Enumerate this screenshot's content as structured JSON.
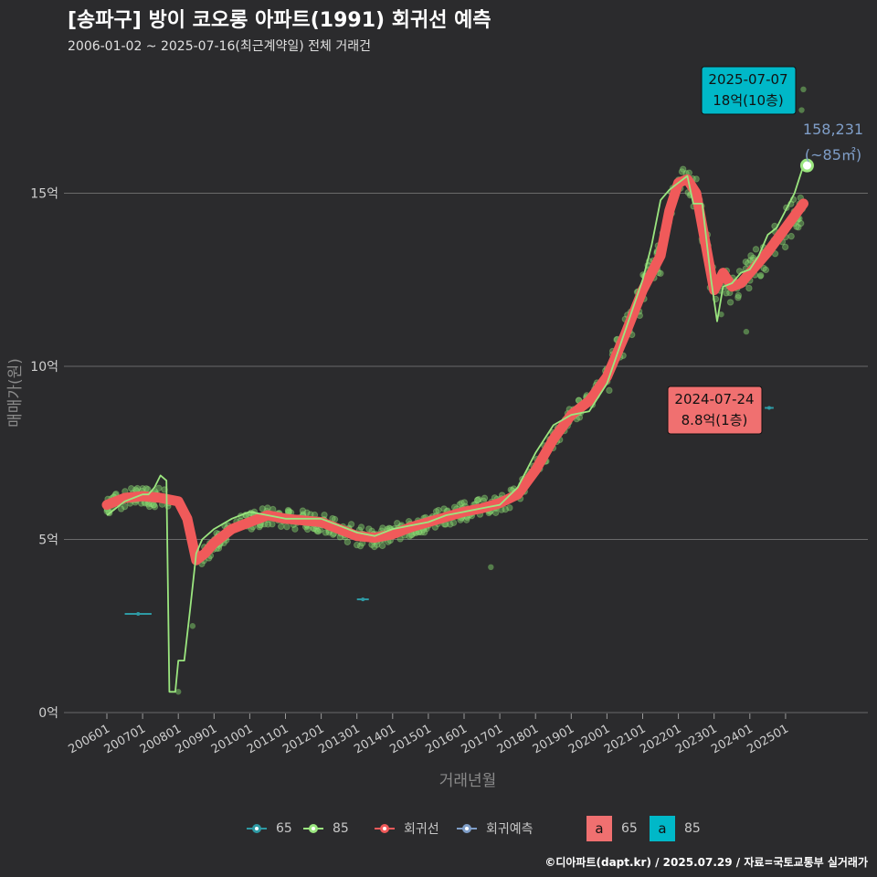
{
  "title": "[송파구] 방이 코오롱 아파트(1991) 회귀선 예측",
  "subtitle": "2006-01-02 ~ 2025-07-16(최근계약일) 전체 거래건",
  "caption": "©디아파트(dapt.kr) / 2025.07.29 / 자료=국토교통부 실거래가",
  "legend": {
    "items": [
      {
        "label": "65",
        "color": "#2e9aa4"
      },
      {
        "label": "85",
        "color": "#9be67f"
      },
      {
        "label": "회귀선",
        "color": "#f05a5a"
      },
      {
        "label": "회귀예측",
        "color": "#7f9ec8"
      }
    ],
    "text_items": [
      {
        "glyph": "a",
        "label": "65",
        "color": "#f07070"
      },
      {
        "glyph": "a",
        "label": "85",
        "color": "#00b8c8"
      }
    ]
  },
  "chart_data": {
    "type": "line",
    "xlabel": "거래년월",
    "ylabel": "매매가(원)",
    "x_ticks": [
      "200601",
      "200701",
      "200801",
      "200901",
      "201001",
      "201101",
      "201201",
      "201301",
      "201401",
      "201501",
      "201601",
      "201701",
      "201801",
      "201901",
      "202001",
      "202101",
      "202201",
      "202301",
      "202401",
      "202501"
    ],
    "y_ticks": [
      {
        "value": 0,
        "label": "0억"
      },
      {
        "value": 5,
        "label": "5억"
      },
      {
        "value": 10,
        "label": "10억"
      },
      {
        "value": 15,
        "label": "15억"
      }
    ],
    "ylim": [
      0,
      18.5
    ],
    "y_unit": "억",
    "grid": true,
    "legend_position": "bottom",
    "series": [
      {
        "name": "85",
        "kind": "monthly-median",
        "color": "#9be67f",
        "points": [
          [
            "2006-01",
            5.7
          ],
          [
            "2006-04",
            5.9
          ],
          [
            "2006-07",
            6.1
          ],
          [
            "2006-10",
            6.2
          ],
          [
            "2007-01",
            6.3
          ],
          [
            "2007-03",
            6.3
          ],
          [
            "2007-05",
            6.5
          ],
          [
            "2007-07",
            6.85
          ],
          [
            "2007-09",
            6.7
          ],
          [
            "2007-10",
            0.6
          ],
          [
            "2007-12",
            0.6
          ],
          [
            "2008-01",
            1.5
          ],
          [
            "2008-03",
            1.5
          ],
          [
            "2008-05",
            3.0
          ],
          [
            "2008-07",
            4.6
          ],
          [
            "2008-09",
            5.0
          ],
          [
            "2009-01",
            5.3
          ],
          [
            "2009-07",
            5.6
          ],
          [
            "2010-01",
            5.8
          ],
          [
            "2010-07",
            5.7
          ],
          [
            "2011-01",
            5.6
          ],
          [
            "2011-07",
            5.6
          ],
          [
            "2012-01",
            5.6
          ],
          [
            "2012-07",
            5.4
          ],
          [
            "2013-01",
            5.2
          ],
          [
            "2013-07",
            5.1
          ],
          [
            "2014-01",
            5.3
          ],
          [
            "2014-07",
            5.4
          ],
          [
            "2015-01",
            5.5
          ],
          [
            "2015-07",
            5.7
          ],
          [
            "2016-01",
            5.8
          ],
          [
            "2016-07",
            5.9
          ],
          [
            "2017-01",
            6.0
          ],
          [
            "2017-07",
            6.5
          ],
          [
            "2018-01",
            7.5
          ],
          [
            "2018-07",
            8.3
          ],
          [
            "2019-01",
            8.6
          ],
          [
            "2019-07",
            8.7
          ],
          [
            "2020-01",
            9.5
          ],
          [
            "2020-07",
            11.0
          ],
          [
            "2021-01",
            12.5
          ],
          [
            "2021-04",
            13.5
          ],
          [
            "2021-07",
            14.8
          ],
          [
            "2021-10",
            15.1
          ],
          [
            "2022-01",
            15.3
          ],
          [
            "2022-04",
            15.5
          ],
          [
            "2022-06",
            14.7
          ],
          [
            "2022-09",
            14.7
          ],
          [
            "2022-12",
            12.5
          ],
          [
            "2023-02",
            11.3
          ],
          [
            "2023-04",
            12.3
          ],
          [
            "2023-07",
            12.4
          ],
          [
            "2023-10",
            12.7
          ],
          [
            "2024-01",
            12.8
          ],
          [
            "2024-04",
            13.2
          ],
          [
            "2024-07",
            13.8
          ],
          [
            "2024-10",
            14.0
          ],
          [
            "2025-01",
            14.5
          ],
          [
            "2025-04",
            15.0
          ],
          [
            "2025-07",
            15.8
          ]
        ]
      },
      {
        "name": "회귀선",
        "kind": "regression",
        "color": "#f05a5a",
        "points": [
          [
            "2006-01",
            6.0
          ],
          [
            "2006-07",
            6.2
          ],
          [
            "2007-01",
            6.25
          ],
          [
            "2007-07",
            6.2
          ],
          [
            "2008-01",
            6.1
          ],
          [
            "2008-04",
            5.6
          ],
          [
            "2008-07",
            4.4
          ],
          [
            "2008-10",
            4.6
          ],
          [
            "2009-01",
            4.9
          ],
          [
            "2009-07",
            5.3
          ],
          [
            "2010-01",
            5.5
          ],
          [
            "2010-07",
            5.7
          ],
          [
            "2011-01",
            5.6
          ],
          [
            "2011-07",
            5.55
          ],
          [
            "2012-01",
            5.5
          ],
          [
            "2012-07",
            5.3
          ],
          [
            "2013-01",
            5.1
          ],
          [
            "2013-07",
            5.05
          ],
          [
            "2014-01",
            5.15
          ],
          [
            "2014-07",
            5.35
          ],
          [
            "2015-01",
            5.5
          ],
          [
            "2015-07",
            5.65
          ],
          [
            "2016-01",
            5.8
          ],
          [
            "2016-07",
            5.9
          ],
          [
            "2017-01",
            6.05
          ],
          [
            "2017-07",
            6.3
          ],
          [
            "2018-01",
            7.0
          ],
          [
            "2018-07",
            7.9
          ],
          [
            "2019-01",
            8.6
          ],
          [
            "2019-07",
            9.0
          ],
          [
            "2020-01",
            9.7
          ],
          [
            "2020-07",
            10.9
          ],
          [
            "2021-01",
            12.2
          ],
          [
            "2021-07",
            13.2
          ],
          [
            "2021-10",
            14.5
          ],
          [
            "2022-01",
            15.3
          ],
          [
            "2022-04",
            15.4
          ],
          [
            "2022-07",
            15.0
          ],
          [
            "2022-10",
            13.6
          ],
          [
            "2023-01",
            12.2
          ],
          [
            "2023-04",
            12.7
          ],
          [
            "2023-07",
            12.3
          ],
          [
            "2023-10",
            12.4
          ],
          [
            "2024-01",
            12.7
          ],
          [
            "2024-07",
            13.3
          ],
          [
            "2025-01",
            14.0
          ],
          [
            "2025-07",
            14.7
          ]
        ]
      }
    ],
    "segments_65": [
      {
        "x_from": "2006-07",
        "x_to": "2007-04",
        "y": 2.85
      },
      {
        "x_from": "2013-01",
        "x_to": "2013-05",
        "y": 3.27
      },
      {
        "x_from": "2024-06",
        "x_to": "2024-09",
        "y": 8.8
      }
    ],
    "highlight_point": {
      "x": "2025-07",
      "y": 15.8,
      "color": "#9be67f"
    },
    "scatter_85_seed": 7,
    "annotations": [
      {
        "lines": [
          "2025-07-07",
          "18억(10층)"
        ],
        "box_color": "#00b8c8",
        "x": "2025-07",
        "y": 18.0
      },
      {
        "lines": [
          "2024-07-24",
          "8.8억(1층)"
        ],
        "box_color": "#f07070",
        "x": "2024-07",
        "y": 8.8
      },
      {
        "lines": [
          "158,231",
          "(~85㎡)"
        ],
        "color": "#7f9ec8",
        "x": "2025-07",
        "y": 15.8
      }
    ]
  }
}
